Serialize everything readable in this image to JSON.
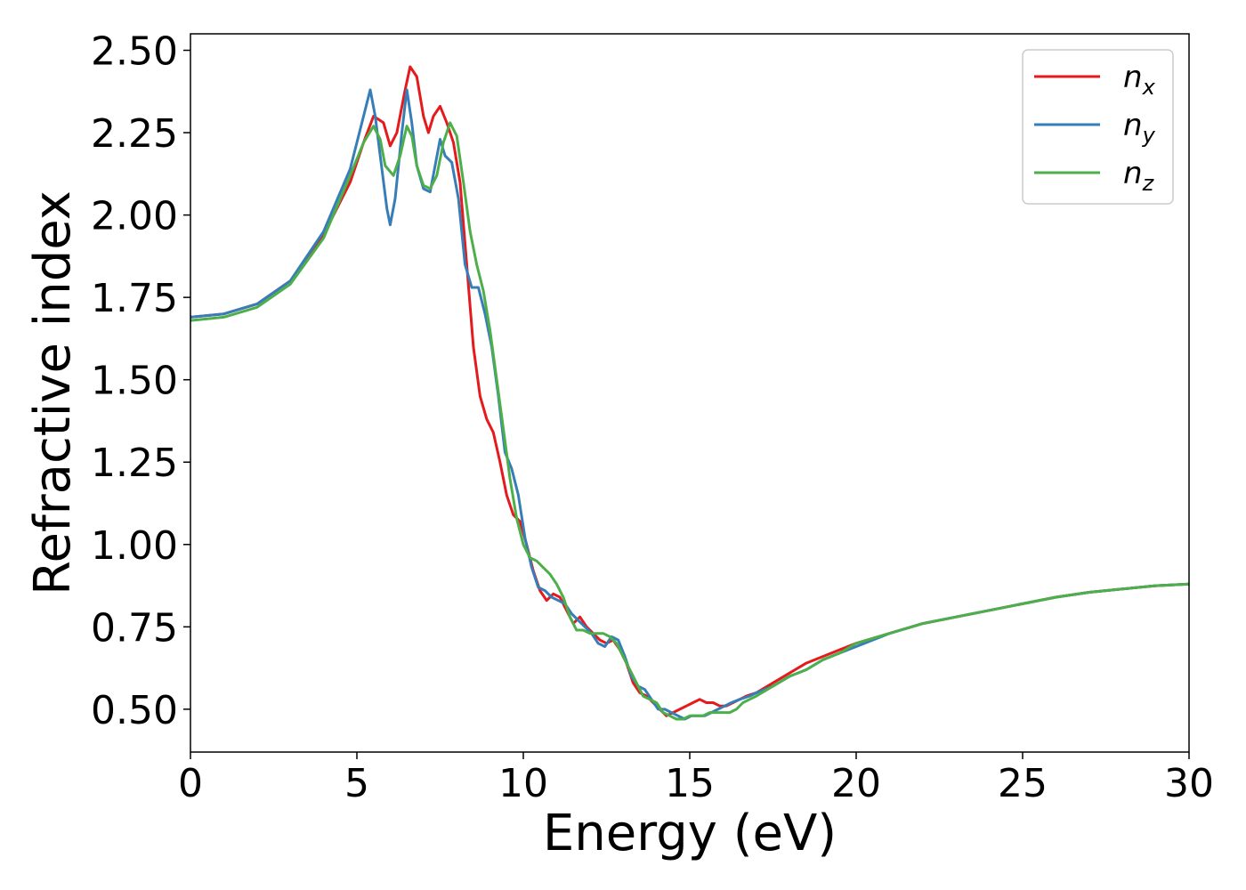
{
  "chart_data": {
    "type": "line",
    "title": "",
    "xlabel": "Energy (eV)",
    "ylabel": "Refractive index",
    "xlim": [
      0,
      30
    ],
    "ylim": [
      0.37,
      2.55
    ],
    "xticks": [
      0,
      5,
      10,
      15,
      20,
      25,
      30
    ],
    "xtick_labels": [
      "0",
      "5",
      "10",
      "15",
      "20",
      "25",
      "30"
    ],
    "yticks": [
      0.5,
      0.75,
      1.0,
      1.25,
      1.5,
      1.75,
      2.0,
      2.25,
      2.5
    ],
    "ytick_labels": [
      "0.50",
      "0.75",
      "1.00",
      "1.25",
      "1.50",
      "1.75",
      "2.00",
      "2.25",
      "2.50"
    ],
    "grid": false,
    "legend_position": "top-right",
    "series": [
      {
        "name_base": "n",
        "name_sub": "x",
        "color": "#e41a1c",
        "points": [
          [
            0,
            1.69
          ],
          [
            1,
            1.7
          ],
          [
            2,
            1.73
          ],
          [
            3,
            1.8
          ],
          [
            4,
            1.94
          ],
          [
            4.8,
            2.1
          ],
          [
            5.2,
            2.22
          ],
          [
            5.5,
            2.3
          ],
          [
            5.8,
            2.28
          ],
          [
            6.0,
            2.21
          ],
          [
            6.2,
            2.25
          ],
          [
            6.45,
            2.38
          ],
          [
            6.6,
            2.45
          ],
          [
            6.8,
            2.42
          ],
          [
            7.0,
            2.3
          ],
          [
            7.15,
            2.25
          ],
          [
            7.3,
            2.3
          ],
          [
            7.5,
            2.33
          ],
          [
            7.7,
            2.28
          ],
          [
            7.9,
            2.22
          ],
          [
            8.1,
            2.1
          ],
          [
            8.3,
            1.85
          ],
          [
            8.5,
            1.6
          ],
          [
            8.7,
            1.45
          ],
          [
            8.9,
            1.38
          ],
          [
            9.1,
            1.34
          ],
          [
            9.3,
            1.25
          ],
          [
            9.5,
            1.15
          ],
          [
            9.7,
            1.09
          ],
          [
            9.9,
            1.07
          ],
          [
            10.1,
            1.0
          ],
          [
            10.3,
            0.92
          ],
          [
            10.5,
            0.86
          ],
          [
            10.7,
            0.83
          ],
          [
            10.9,
            0.85
          ],
          [
            11.1,
            0.84
          ],
          [
            11.3,
            0.8
          ],
          [
            11.5,
            0.76
          ],
          [
            11.7,
            0.78
          ],
          [
            11.9,
            0.75
          ],
          [
            12.1,
            0.73
          ],
          [
            12.3,
            0.71
          ],
          [
            12.5,
            0.7
          ],
          [
            12.7,
            0.71
          ],
          [
            12.9,
            0.68
          ],
          [
            13.1,
            0.64
          ],
          [
            13.3,
            0.58
          ],
          [
            13.5,
            0.55
          ],
          [
            13.7,
            0.54
          ],
          [
            13.9,
            0.52
          ],
          [
            14.1,
            0.5
          ],
          [
            14.3,
            0.48
          ],
          [
            14.5,
            0.49
          ],
          [
            14.7,
            0.5
          ],
          [
            14.9,
            0.51
          ],
          [
            15.1,
            0.52
          ],
          [
            15.3,
            0.53
          ],
          [
            15.5,
            0.52
          ],
          [
            15.7,
            0.52
          ],
          [
            15.9,
            0.51
          ],
          [
            16.1,
            0.51
          ],
          [
            16.3,
            0.52
          ],
          [
            16.5,
            0.53
          ],
          [
            16.7,
            0.54
          ],
          [
            17.0,
            0.55
          ],
          [
            17.5,
            0.58
          ],
          [
            18,
            0.61
          ],
          [
            18.5,
            0.64
          ],
          [
            19,
            0.66
          ],
          [
            19.5,
            0.68
          ],
          [
            20,
            0.7
          ],
          [
            21,
            0.73
          ],
          [
            22,
            0.76
          ],
          [
            23,
            0.78
          ],
          [
            24,
            0.8
          ],
          [
            25,
            0.82
          ],
          [
            26,
            0.84
          ],
          [
            27,
            0.855
          ],
          [
            28,
            0.865
          ],
          [
            29,
            0.875
          ],
          [
            30,
            0.88
          ]
        ]
      },
      {
        "name_base": "n",
        "name_sub": "y",
        "color": "#377eb8",
        "points": [
          [
            0,
            1.69
          ],
          [
            1,
            1.7
          ],
          [
            2,
            1.73
          ],
          [
            3,
            1.8
          ],
          [
            4,
            1.95
          ],
          [
            4.8,
            2.14
          ],
          [
            5.2,
            2.3
          ],
          [
            5.4,
            2.38
          ],
          [
            5.55,
            2.3
          ],
          [
            5.7,
            2.18
          ],
          [
            5.9,
            2.02
          ],
          [
            6.0,
            1.97
          ],
          [
            6.15,
            2.05
          ],
          [
            6.35,
            2.25
          ],
          [
            6.5,
            2.38
          ],
          [
            6.65,
            2.28
          ],
          [
            6.8,
            2.15
          ],
          [
            7.0,
            2.08
          ],
          [
            7.2,
            2.07
          ],
          [
            7.35,
            2.15
          ],
          [
            7.5,
            2.23
          ],
          [
            7.65,
            2.18
          ],
          [
            7.85,
            2.16
          ],
          [
            8.05,
            2.05
          ],
          [
            8.25,
            1.85
          ],
          [
            8.45,
            1.78
          ],
          [
            8.65,
            1.78
          ],
          [
            8.85,
            1.7
          ],
          [
            9.05,
            1.6
          ],
          [
            9.25,
            1.45
          ],
          [
            9.45,
            1.28
          ],
          [
            9.65,
            1.23
          ],
          [
            9.85,
            1.15
          ],
          [
            10.05,
            1.02
          ],
          [
            10.25,
            0.93
          ],
          [
            10.45,
            0.87
          ],
          [
            10.65,
            0.86
          ],
          [
            10.85,
            0.84
          ],
          [
            11.05,
            0.83
          ],
          [
            11.25,
            0.82
          ],
          [
            11.45,
            0.79
          ],
          [
            11.65,
            0.77
          ],
          [
            11.85,
            0.75
          ],
          [
            12.05,
            0.73
          ],
          [
            12.25,
            0.7
          ],
          [
            12.45,
            0.69
          ],
          [
            12.65,
            0.72
          ],
          [
            12.85,
            0.71
          ],
          [
            13.05,
            0.66
          ],
          [
            13.25,
            0.6
          ],
          [
            13.45,
            0.57
          ],
          [
            13.65,
            0.56
          ],
          [
            13.85,
            0.53
          ],
          [
            14.05,
            0.5
          ],
          [
            14.25,
            0.5
          ],
          [
            14.45,
            0.49
          ],
          [
            14.65,
            0.48
          ],
          [
            14.85,
            0.47
          ],
          [
            15.05,
            0.48
          ],
          [
            15.25,
            0.48
          ],
          [
            15.45,
            0.48
          ],
          [
            15.65,
            0.49
          ],
          [
            15.85,
            0.5
          ],
          [
            16.05,
            0.51
          ],
          [
            16.25,
            0.52
          ],
          [
            16.5,
            0.53
          ],
          [
            16.8,
            0.54
          ],
          [
            17.0,
            0.55
          ],
          [
            17.5,
            0.57
          ],
          [
            18,
            0.6
          ],
          [
            18.5,
            0.62
          ],
          [
            19,
            0.65
          ],
          [
            19.5,
            0.67
          ],
          [
            20,
            0.69
          ],
          [
            21,
            0.73
          ],
          [
            22,
            0.76
          ],
          [
            23,
            0.78
          ],
          [
            24,
            0.8
          ],
          [
            25,
            0.82
          ],
          [
            26,
            0.84
          ],
          [
            27,
            0.855
          ],
          [
            28,
            0.865
          ],
          [
            29,
            0.875
          ],
          [
            30,
            0.88
          ]
        ]
      },
      {
        "name_base": "n",
        "name_sub": "z",
        "color": "#4daf4a",
        "points": [
          [
            0,
            1.68
          ],
          [
            1,
            1.69
          ],
          [
            2,
            1.72
          ],
          [
            3,
            1.79
          ],
          [
            4,
            1.93
          ],
          [
            4.8,
            2.12
          ],
          [
            5.2,
            2.22
          ],
          [
            5.5,
            2.27
          ],
          [
            5.7,
            2.23
          ],
          [
            5.85,
            2.15
          ],
          [
            6.1,
            2.12
          ],
          [
            6.3,
            2.18
          ],
          [
            6.5,
            2.27
          ],
          [
            6.65,
            2.24
          ],
          [
            6.8,
            2.15
          ],
          [
            7.0,
            2.09
          ],
          [
            7.2,
            2.08
          ],
          [
            7.4,
            2.12
          ],
          [
            7.6,
            2.22
          ],
          [
            7.8,
            2.28
          ],
          [
            8.0,
            2.24
          ],
          [
            8.2,
            2.1
          ],
          [
            8.4,
            1.95
          ],
          [
            8.6,
            1.85
          ],
          [
            8.8,
            1.77
          ],
          [
            9.0,
            1.65
          ],
          [
            9.2,
            1.5
          ],
          [
            9.4,
            1.35
          ],
          [
            9.6,
            1.2
          ],
          [
            9.8,
            1.08
          ],
          [
            10.0,
            1.0
          ],
          [
            10.2,
            0.96
          ],
          [
            10.4,
            0.95
          ],
          [
            10.6,
            0.93
          ],
          [
            10.8,
            0.91
          ],
          [
            11.0,
            0.88
          ],
          [
            11.2,
            0.84
          ],
          [
            11.4,
            0.78
          ],
          [
            11.6,
            0.74
          ],
          [
            11.8,
            0.74
          ],
          [
            12.0,
            0.73
          ],
          [
            12.2,
            0.73
          ],
          [
            12.4,
            0.73
          ],
          [
            12.6,
            0.72
          ],
          [
            12.8,
            0.7
          ],
          [
            13.0,
            0.66
          ],
          [
            13.2,
            0.62
          ],
          [
            13.4,
            0.58
          ],
          [
            13.6,
            0.54
          ],
          [
            13.8,
            0.53
          ],
          [
            14.0,
            0.52
          ],
          [
            14.2,
            0.49
          ],
          [
            14.4,
            0.48
          ],
          [
            14.6,
            0.47
          ],
          [
            14.8,
            0.47
          ],
          [
            15.0,
            0.48
          ],
          [
            15.2,
            0.48
          ],
          [
            15.4,
            0.48
          ],
          [
            15.6,
            0.49
          ],
          [
            15.8,
            0.49
          ],
          [
            16.0,
            0.49
          ],
          [
            16.2,
            0.49
          ],
          [
            16.4,
            0.5
          ],
          [
            16.6,
            0.52
          ],
          [
            16.8,
            0.53
          ],
          [
            17.0,
            0.54
          ],
          [
            17.5,
            0.57
          ],
          [
            18,
            0.6
          ],
          [
            18.5,
            0.62
          ],
          [
            19,
            0.65
          ],
          [
            19.5,
            0.67
          ],
          [
            20,
            0.7
          ],
          [
            21,
            0.73
          ],
          [
            22,
            0.76
          ],
          [
            23,
            0.78
          ],
          [
            24,
            0.8
          ],
          [
            25,
            0.82
          ],
          [
            26,
            0.84
          ],
          [
            27,
            0.855
          ],
          [
            28,
            0.865
          ],
          [
            29,
            0.875
          ],
          [
            30,
            0.88
          ]
        ]
      }
    ]
  }
}
